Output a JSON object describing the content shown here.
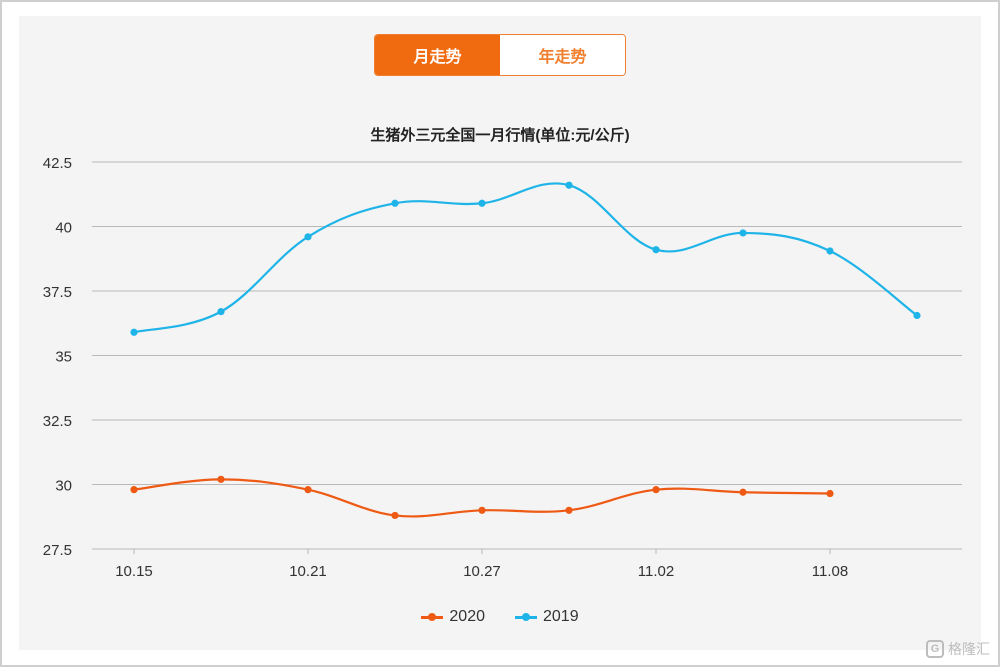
{
  "tabs": [
    {
      "label": "月走势",
      "active": true
    },
    {
      "label": "年走势",
      "active": false
    }
  ],
  "watermark": {
    "logo": "G",
    "text": "格隆汇"
  },
  "chart_data": {
    "type": "line",
    "title": "生猪外三元全国一月行情(单位:元/公斤)",
    "xlabel": "",
    "ylabel": "",
    "x_tick_labels": [
      "10.15",
      "10.21",
      "10.27",
      "11.02",
      "11.08"
    ],
    "y_tick_labels": [
      "42.5",
      "40",
      "37.5",
      "35",
      "32.5",
      "30",
      "27.5"
    ],
    "ylim": [
      27.5,
      42.5
    ],
    "grid": true,
    "legend_position": "bottom",
    "x": [
      "10.15",
      "10.18",
      "10.21",
      "10.24",
      "10.27",
      "10.30",
      "11.02",
      "11.05",
      "11.08",
      "11.11"
    ],
    "series": [
      {
        "name": "2020",
        "color": "#ee5a14",
        "values": [
          29.8,
          30.2,
          29.8,
          28.8,
          29.0,
          29.0,
          29.8,
          29.7,
          29.65,
          null
        ]
      },
      {
        "name": "2019",
        "color": "#1fb4e8",
        "values": [
          35.9,
          36.7,
          39.6,
          40.9,
          40.9,
          41.6,
          39.1,
          39.75,
          39.05,
          36.55
        ]
      }
    ]
  }
}
